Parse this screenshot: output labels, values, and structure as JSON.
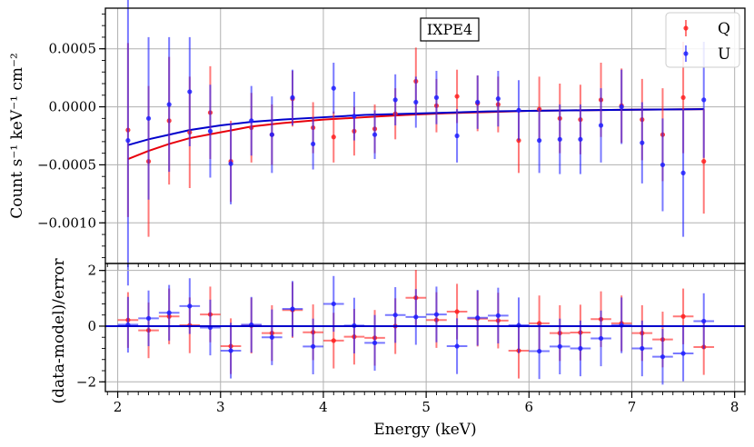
{
  "chart_data": [
    {
      "type": "scatter",
      "title": "IXPE4",
      "xlabel": "",
      "ylabel": "Count s⁻¹ keV⁻¹ cm⁻²",
      "xlim": [
        1.88,
        8.1
      ],
      "ylim": [
        -0.00135,
        0.00085
      ],
      "yticks": [
        -0.001,
        -0.0005,
        0.0,
        0.0005
      ],
      "ytick_labels": [
        "−0.0010",
        "−0.0005",
        "0.0000",
        "0.0005"
      ],
      "grid": true,
      "legend": "top-right",
      "series": [
        {
          "name": "Q",
          "color": "#ff2020",
          "x": [
            2.1,
            2.3,
            2.5,
            2.7,
            2.9,
            3.1,
            3.3,
            3.5,
            3.7,
            3.9,
            4.1,
            4.3,
            4.5,
            4.7,
            4.9,
            5.1,
            5.3,
            5.5,
            5.7,
            5.9,
            6.1,
            6.3,
            6.5,
            6.7,
            6.9,
            7.1,
            7.3,
            7.5,
            7.7
          ],
          "y": [
            -0.0002,
            -0.00047,
            -0.00012,
            -0.00022,
            -5e-05,
            -0.00047,
            -0.00018,
            -0.00024,
            7e-05,
            -0.00018,
            -0.00026,
            -0.00021,
            -0.00019,
            -6e-05,
            0.00022,
            1e-05,
            9e-05,
            3e-05,
            2e-05,
            -0.00029,
            -2e-05,
            -0.0001,
            -0.00011,
            6e-05,
            1e-05,
            -0.00011,
            -0.00024,
            8e-05,
            -0.00047
          ],
          "yerr": [
            0.00075,
            0.00065,
            0.00055,
            0.00048,
            0.0004,
            0.00035,
            0.0003,
            0.00026,
            0.00024,
            0.00022,
            0.00022,
            0.00021,
            0.00021,
            0.00022,
            0.00029,
            0.00023,
            0.00023,
            0.00024,
            0.00024,
            0.00028,
            0.00028,
            0.0003,
            0.0003,
            0.00032,
            0.00032,
            0.00035,
            0.0004,
            0.00048,
            0.00045
          ]
        },
        {
          "name": "U",
          "color": "#2020ff",
          "x": [
            2.1,
            2.3,
            2.5,
            2.7,
            2.9,
            3.1,
            3.3,
            3.5,
            3.7,
            3.9,
            4.1,
            4.3,
            4.5,
            4.7,
            4.9,
            5.1,
            5.3,
            5.5,
            5.7,
            5.9,
            6.1,
            6.3,
            6.5,
            6.7,
            6.9,
            7.1,
            7.3,
            7.5,
            7.7
          ],
          "y": [
            -0.00029,
            -0.0001,
            2e-05,
            0.00013,
            -0.00021,
            -0.00049,
            -0.00012,
            -0.00024,
            8e-05,
            -0.00032,
            0.00016,
            -8e-05,
            -0.00024,
            6e-05,
            4e-05,
            8e-05,
            -0.00025,
            4e-05,
            7e-05,
            -3e-05,
            -0.00029,
            -0.00028,
            -0.00028,
            -0.00016,
            0.0,
            -0.00031,
            -0.0005,
            -0.00057,
            6e-05
          ],
          "yerr": [
            0.00125,
            0.0007,
            0.00058,
            0.00047,
            0.0004,
            0.00035,
            0.0003,
            0.00033,
            0.00024,
            0.00022,
            0.00022,
            0.00021,
            0.00021,
            0.00022,
            0.00022,
            0.00023,
            0.00023,
            0.00023,
            0.00024,
            0.00026,
            0.00028,
            0.0003,
            0.0003,
            0.00032,
            0.00032,
            0.00035,
            0.0004,
            0.00055,
            0.0005
          ]
        }
      ],
      "models": [
        {
          "color": "#e8000b",
          "x": [
            2.1,
            2.3,
            2.5,
            2.7,
            3.0,
            3.3,
            3.6,
            4.0,
            4.4,
            4.8,
            5.2,
            5.6,
            6.0,
            6.5,
            7.0,
            7.7
          ],
          "y": [
            -0.00045,
            -0.00038,
            -0.00032,
            -0.00027,
            -0.00022,
            -0.00017,
            -0.00014,
            -0.00011,
            -9e-05,
            -7e-05,
            -5.5e-05,
            -4.5e-05,
            -3.5e-05,
            -3e-05,
            -2.5e-05,
            -2e-05
          ]
        },
        {
          "color": "#0000cc",
          "x": [
            2.1,
            2.3,
            2.5,
            2.7,
            3.0,
            3.3,
            3.6,
            4.0,
            4.4,
            4.8,
            5.2,
            5.6,
            6.0,
            6.5,
            7.0,
            7.7
          ],
          "y": [
            -0.00033,
            -0.00028,
            -0.00024,
            -0.0002,
            -0.00016,
            -0.00013,
            -0.00011,
            -9e-05,
            -7e-05,
            -6e-05,
            -5e-05,
            -4e-05,
            -3.5e-05,
            -3e-05,
            -2.5e-05,
            -2e-05
          ]
        }
      ]
    },
    {
      "type": "scatter",
      "title": "",
      "xlabel": "Energy (keV)",
      "ylabel": "(data-model)/error",
      "xlim": [
        1.88,
        8.1
      ],
      "ylim": [
        -2.35,
        2.25
      ],
      "xticks": [
        2,
        3,
        4,
        5,
        6,
        7,
        8
      ],
      "xtick_labels": [
        "2",
        "3",
        "4",
        "5",
        "6",
        "7",
        "8"
      ],
      "yticks": [
        -2,
        0,
        2
      ],
      "ytick_labels": [
        "−2",
        "0",
        "2"
      ],
      "grid": true,
      "series": [
        {
          "name": "Q",
          "color": "#ff2020",
          "x": [
            2.1,
            2.3,
            2.5,
            2.7,
            2.9,
            3.1,
            3.3,
            3.5,
            3.7,
            3.9,
            4.1,
            4.3,
            4.5,
            4.7,
            4.9,
            5.1,
            5.3,
            5.5,
            5.7,
            5.9,
            6.1,
            6.3,
            6.5,
            6.7,
            6.9,
            7.1,
            7.3,
            7.5,
            7.7
          ],
          "y": [
            0.22,
            -0.15,
            0.35,
            0.03,
            0.42,
            -0.72,
            0.02,
            -0.25,
            0.58,
            -0.22,
            -0.52,
            -0.38,
            -0.42,
            0.0,
            1.02,
            0.22,
            0.52,
            0.27,
            0.2,
            -0.88,
            0.1,
            -0.25,
            -0.23,
            0.25,
            0.1,
            -0.25,
            -0.48,
            0.35,
            -0.75
          ],
          "yerr": [
            1,
            1,
            1,
            1,
            1,
            1,
            1,
            1,
            1,
            1,
            1,
            1,
            1,
            1,
            1,
            1,
            1,
            1,
            1,
            1,
            1,
            1,
            1,
            1,
            1,
            1,
            1,
            1,
            1
          ]
        },
        {
          "name": "U",
          "color": "#2020ff",
          "x": [
            2.1,
            2.3,
            2.5,
            2.7,
            2.9,
            3.1,
            3.3,
            3.5,
            3.7,
            3.9,
            4.1,
            4.3,
            4.5,
            4.7,
            4.9,
            5.1,
            5.3,
            5.5,
            5.7,
            5.9,
            6.1,
            6.3,
            6.5,
            6.7,
            6.9,
            7.1,
            7.3,
            7.5,
            7.7
          ],
          "y": [
            0.05,
            0.28,
            0.48,
            0.72,
            -0.05,
            -0.88,
            0.05,
            -0.4,
            0.62,
            -0.73,
            0.8,
            0.02,
            -0.6,
            0.4,
            0.33,
            0.42,
            -0.72,
            0.3,
            0.38,
            0.03,
            -0.9,
            -0.73,
            -0.8,
            -0.44,
            0.03,
            -0.8,
            -1.1,
            -0.98,
            0.18
          ],
          "yerr": [
            1,
            1,
            1,
            1,
            1,
            1,
            1,
            1,
            1,
            1,
            1,
            1,
            1,
            1,
            1,
            1,
            1,
            1,
            1,
            1,
            1,
            1,
            1,
            1,
            1,
            1,
            1,
            1,
            1
          ]
        }
      ],
      "reference_line": {
        "y": 0,
        "color": "#0000cc"
      }
    }
  ]
}
